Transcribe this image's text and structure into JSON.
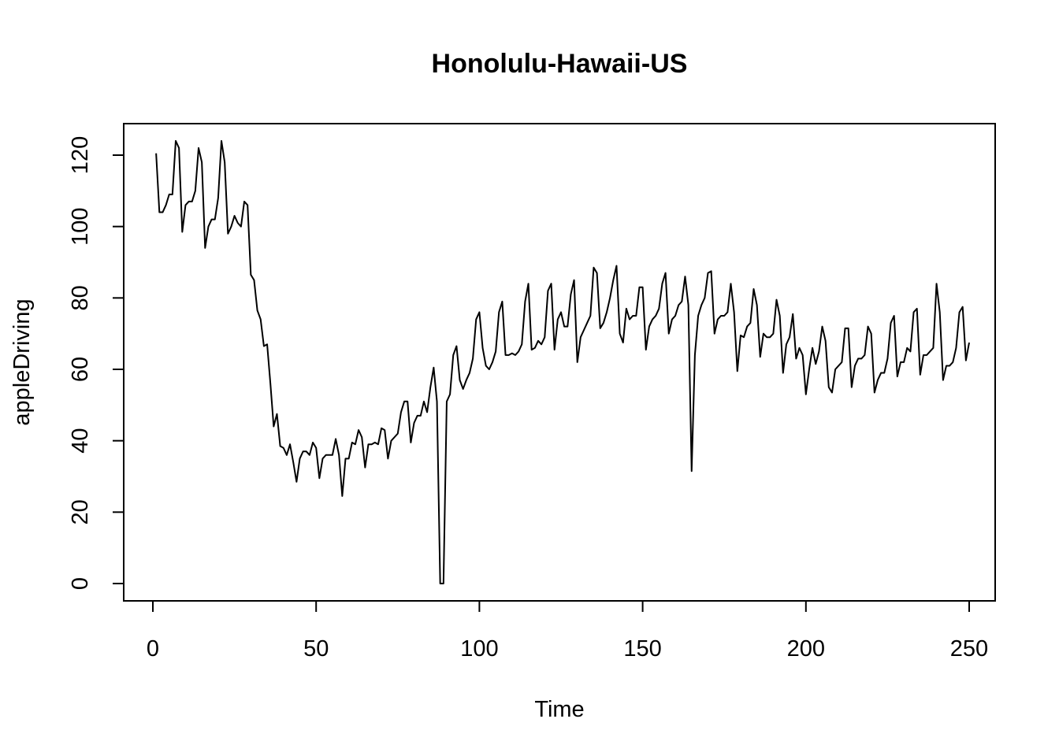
{
  "chart_data": {
    "type": "line",
    "title": "Honolulu-Hawaii-US",
    "xlabel": "Time",
    "ylabel": "appleDriving",
    "xlim": [
      1,
      248
    ],
    "ylim": [
      0,
      124
    ],
    "x_ticks": [
      0,
      50,
      100,
      150,
      200,
      250
    ],
    "y_ticks": [
      0,
      20,
      40,
      60,
      80,
      100,
      120
    ],
    "grid": false,
    "legend": "none",
    "line_color": "#000000",
    "series": [
      {
        "x_start": 1,
        "x_step": 1,
        "values": [
          120.5,
          104,
          104,
          106,
          109,
          109,
          124,
          122,
          98.5,
          106,
          107,
          107,
          110,
          122,
          118,
          94,
          100,
          102,
          102,
          108,
          124,
          118,
          98,
          100,
          103,
          101,
          100,
          107,
          106,
          86.5,
          85,
          76.5,
          74,
          66.5,
          67,
          56,
          44,
          47.5,
          38.5,
          38,
          36,
          39,
          34,
          28.5,
          35,
          37,
          37,
          36,
          39.5,
          38,
          29.5,
          35,
          36,
          36,
          36,
          40.5,
          36,
          24.5,
          35,
          35,
          39.5,
          39,
          43,
          41,
          32.5,
          39,
          39,
          39.5,
          39,
          43.5,
          43,
          35,
          40,
          41,
          42,
          48,
          51,
          51,
          39.5,
          45,
          47,
          47,
          51,
          48,
          55,
          60.5,
          51,
          0,
          0,
          51,
          53,
          64,
          66.5,
          57,
          54.5,
          57,
          59,
          63,
          74,
          76,
          66,
          61,
          60,
          62,
          65,
          76,
          79,
          64,
          64,
          64.5,
          64,
          65,
          67,
          79,
          84,
          65.5,
          66,
          68,
          67,
          69,
          82,
          84,
          65.5,
          74,
          76,
          72,
          72,
          81,
          85,
          62,
          69,
          71,
          73,
          75,
          88.5,
          87,
          71.5,
          73,
          76,
          80,
          85,
          89,
          70,
          67.5,
          77,
          74,
          75,
          75,
          83,
          83,
          65.5,
          72,
          74,
          75,
          77,
          84,
          87,
          70,
          74,
          75,
          78,
          79,
          86,
          78,
          31.5,
          64,
          75,
          78,
          80,
          87,
          87.5,
          70,
          74,
          75,
          75,
          76,
          84,
          76,
          59.5,
          69.5,
          69,
          72,
          73,
          82.5,
          78,
          63.5,
          70,
          69,
          69,
          70,
          79.5,
          75,
          59,
          67,
          69,
          75.5,
          63,
          66,
          64,
          53,
          60,
          66,
          61.5,
          65,
          72,
          68,
          55,
          53.5,
          60,
          61,
          62,
          71.5,
          71.5,
          55,
          61,
          63,
          63,
          64,
          72,
          70,
          53.5,
          57,
          59,
          59,
          63,
          73,
          75,
          58,
          62,
          62,
          66,
          65,
          76,
          77,
          58.5,
          64,
          64,
          65,
          66,
          84,
          76,
          57,
          61,
          61,
          62,
          66,
          76,
          77.5,
          62.5,
          67.5
        ]
      }
    ]
  }
}
